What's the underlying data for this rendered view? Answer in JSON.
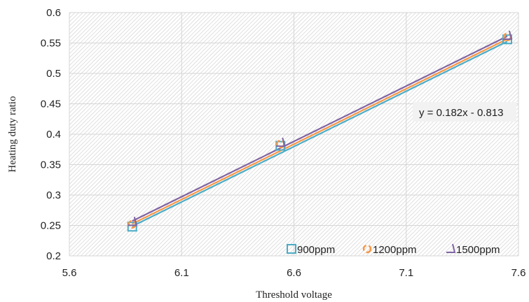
{
  "chart_data": {
    "type": "scatter",
    "xlabel": "Threshold voltage",
    "ylabel": "Heating duty ratio",
    "xlim": [
      5.6,
      7.6
    ],
    "ylim": [
      0.2,
      0.6
    ],
    "x_ticks": [
      "5.6",
      "6.1",
      "6.6",
      "7.1",
      "7.6"
    ],
    "y_ticks": [
      "0.2",
      "0.25",
      "0.3",
      "0.35",
      "0.4",
      "0.45",
      "0.5",
      "0.55",
      "0.6"
    ],
    "grid": true,
    "background": "diagonal hatch",
    "legend_position": "bottom-right",
    "trendline_equation": "y = 0.182x - 0.813",
    "series": [
      {
        "name": "900ppm",
        "marker": "square",
        "color": "#4bacc6",
        "x": [
          5.88,
          6.54,
          7.55
        ],
        "y": [
          0.248,
          0.381,
          0.556
        ],
        "trendline": [
          0.182,
          -0.8215
        ]
      },
      {
        "name": "1200ppm",
        "marker": "circle",
        "color": "#f79646",
        "x": [
          5.88,
          6.54,
          7.55
        ],
        "y": [
          0.252,
          0.384,
          0.56
        ],
        "trendline": [
          0.182,
          -0.8175
        ]
      },
      {
        "name": "1500ppm",
        "marker": "triangle",
        "color": "#8064a2",
        "x": [
          5.88,
          6.54,
          7.55
        ],
        "y": [
          0.256,
          0.386,
          0.562
        ],
        "trendline": [
          0.182,
          -0.813
        ]
      }
    ]
  }
}
